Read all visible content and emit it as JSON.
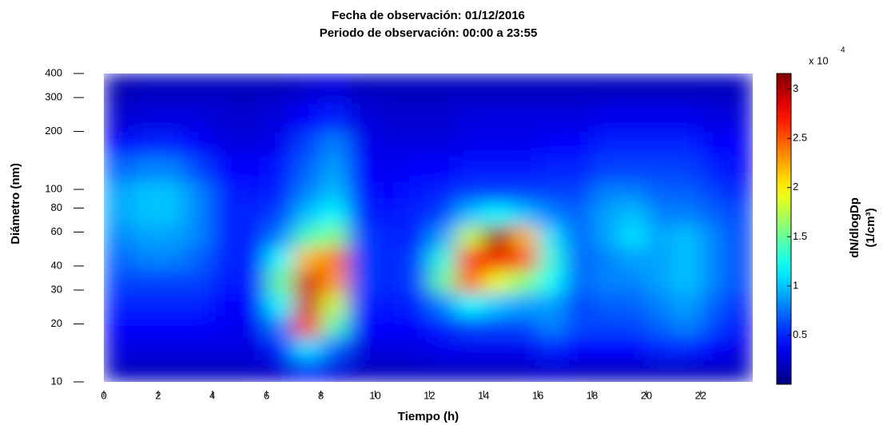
{
  "chart_data": {
    "type": "heatmap",
    "title": "Fecha de observación: 01/12/2016",
    "subtitle": "Periodo de observación: 00:00 a 23:55",
    "x_label": "Tiempo (h)",
    "y_label": "Diámetro (nm)",
    "colorbar_label": "dN/dlogDp",
    "colorbar_unit": "(1/cm³)",
    "colorbar_multiplier": "x 10",
    "colorbar_exponent": "4",
    "colormap": "jet",
    "y_log": true,
    "xlim": [
      0,
      23.92
    ],
    "ylim": [
      10,
      400
    ],
    "clim": [
      0,
      3.16
    ],
    "xticks": [
      0,
      2,
      4,
      6,
      8,
      10,
      12,
      14,
      16,
      18,
      20,
      22
    ],
    "yticks": [
      10,
      20,
      30,
      40,
      60,
      80,
      100,
      200,
      300,
      400
    ],
    "cticks": [
      0.5,
      1,
      1.5,
      2,
      2.5,
      3
    ],
    "x_edges": [
      0,
      1,
      2,
      3,
      4,
      5,
      6,
      7,
      8,
      9,
      10,
      11,
      12,
      13,
      14,
      15,
      16,
      17,
      18,
      19,
      20,
      21,
      22,
      23,
      23.92
    ],
    "y_edges": [
      10,
      13,
      17,
      22,
      29,
      38,
      50,
      65,
      85,
      110,
      150,
      200,
      280,
      400
    ],
    "z": [
      [
        0.2,
        0.2,
        0.2,
        0.2,
        0.2,
        0.2,
        0.25,
        0.5,
        0.3,
        0.2,
        0.2,
        0.2,
        0.2,
        0.2,
        0.2,
        0.2,
        0.25,
        0.2,
        0.2,
        0.2,
        0.2,
        0.2,
        0.2,
        0.2
      ],
      [
        0.3,
        0.3,
        0.3,
        0.3,
        0.3,
        0.3,
        0.5,
        1.1,
        0.7,
        0.3,
        0.3,
        0.3,
        0.35,
        0.35,
        0.35,
        0.35,
        0.5,
        0.4,
        0.4,
        0.4,
        0.5,
        0.5,
        0.4,
        0.3
      ],
      [
        0.4,
        0.4,
        0.4,
        0.4,
        0.35,
        0.35,
        0.8,
        2.6,
        1.4,
        0.4,
        0.4,
        0.4,
        0.5,
        0.6,
        0.6,
        0.6,
        0.8,
        0.6,
        0.6,
        0.6,
        0.7,
        0.8,
        0.6,
        0.4
      ],
      [
        0.5,
        0.5,
        0.5,
        0.5,
        0.4,
        0.4,
        1.2,
        2.9,
        1.8,
        0.5,
        0.45,
        0.5,
        0.8,
        1.2,
        1.0,
        0.9,
        0.9,
        0.6,
        0.7,
        0.7,
        0.8,
        0.9,
        0.7,
        0.5
      ],
      [
        0.6,
        0.6,
        0.6,
        0.6,
        0.45,
        0.5,
        1.5,
        2.9,
        2.3,
        0.6,
        0.5,
        0.6,
        1.5,
        2.5,
        1.9,
        1.6,
        1.2,
        0.7,
        0.8,
        0.8,
        0.9,
        1.0,
        0.8,
        0.6
      ],
      [
        0.7,
        0.8,
        0.8,
        0.7,
        0.5,
        0.5,
        1.2,
        2.2,
        2.4,
        0.6,
        0.5,
        0.6,
        1.3,
        2.6,
        2.8,
        2.5,
        1.3,
        0.7,
        0.8,
        0.9,
        0.9,
        1.0,
        0.8,
        0.6
      ],
      [
        0.8,
        0.9,
        0.9,
        0.8,
        0.5,
        0.5,
        0.8,
        1.4,
        1.6,
        0.6,
        0.5,
        0.5,
        0.9,
        1.8,
        3.1,
        2.2,
        1.1,
        0.7,
        0.9,
        1.1,
        0.9,
        1.0,
        0.8,
        0.6
      ],
      [
        0.9,
        1.0,
        1.0,
        0.8,
        0.5,
        0.5,
        0.6,
        1.0,
        1.2,
        0.5,
        0.45,
        0.5,
        0.6,
        1.0,
        1.2,
        1.0,
        0.8,
        0.7,
        0.9,
        1.0,
        0.8,
        0.8,
        0.7,
        0.6
      ],
      [
        0.9,
        1.0,
        1.0,
        0.8,
        0.5,
        0.45,
        0.5,
        0.8,
        1.0,
        0.45,
        0.4,
        0.45,
        0.5,
        0.6,
        0.6,
        0.6,
        0.6,
        0.6,
        0.8,
        0.8,
        0.7,
        0.7,
        0.6,
        0.5
      ],
      [
        0.7,
        0.8,
        0.8,
        0.6,
        0.4,
        0.4,
        0.45,
        0.7,
        0.9,
        0.4,
        0.35,
        0.4,
        0.4,
        0.45,
        0.45,
        0.45,
        0.5,
        0.5,
        0.6,
        0.6,
        0.6,
        0.6,
        0.5,
        0.4
      ],
      [
        0.4,
        0.5,
        0.5,
        0.4,
        0.3,
        0.3,
        0.35,
        0.6,
        0.8,
        0.35,
        0.3,
        0.3,
        0.3,
        0.35,
        0.35,
        0.35,
        0.4,
        0.4,
        0.5,
        0.5,
        0.5,
        0.5,
        0.4,
        0.4
      ],
      [
        0.25,
        0.3,
        0.3,
        0.3,
        0.25,
        0.25,
        0.3,
        0.4,
        0.5,
        0.3,
        0.25,
        0.25,
        0.25,
        0.3,
        0.3,
        0.3,
        0.3,
        0.3,
        0.35,
        0.35,
        0.35,
        0.35,
        0.3,
        0.3
      ],
      [
        0.15,
        0.2,
        0.2,
        0.2,
        0.2,
        0.2,
        0.2,
        0.25,
        0.3,
        0.2,
        0.2,
        0.2,
        0.2,
        0.2,
        0.2,
        0.2,
        0.2,
        0.2,
        0.2,
        0.2,
        0.2,
        0.2,
        0.2,
        0.2
      ]
    ]
  }
}
